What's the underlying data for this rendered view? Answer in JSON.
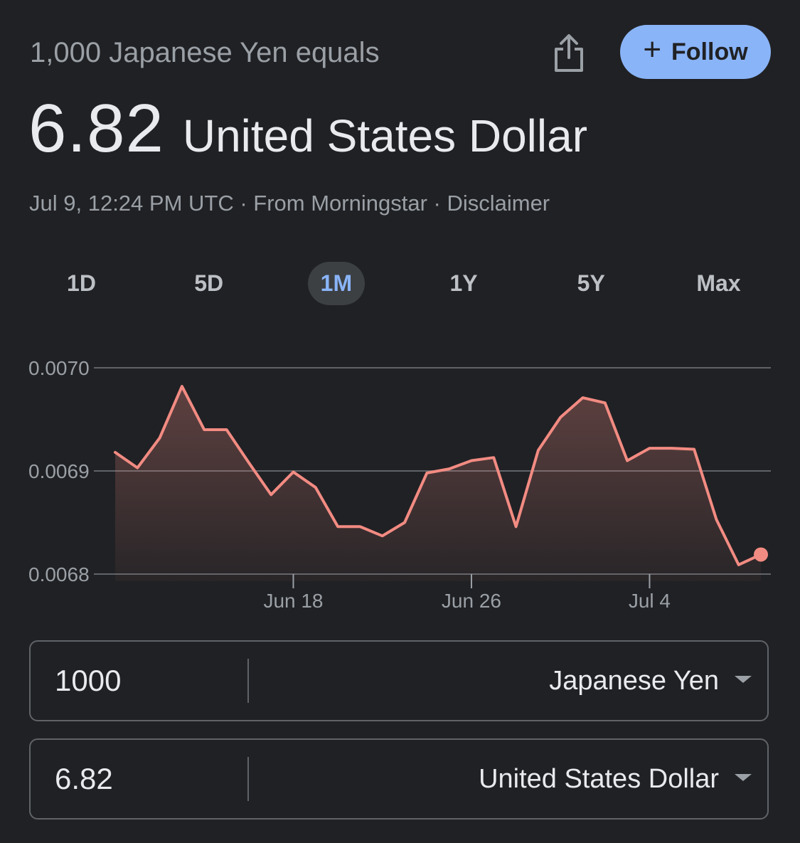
{
  "header": {
    "subtitle": "1,000 Japanese Yen equals",
    "value": "6.82",
    "currency": "United States Dollar",
    "timestamp": "Jul 9, 12:24 PM UTC",
    "separator": " · ",
    "source": "From Morningstar",
    "disclaimer": "Disclaimer",
    "share_icon": "share-icon",
    "follow_label": "Follow",
    "follow_icon": "plus-icon",
    "accent_color": "#8ab4f8"
  },
  "ranges": [
    {
      "label": "1D",
      "active": false
    },
    {
      "label": "5D",
      "active": false
    },
    {
      "label": "1M",
      "active": true
    },
    {
      "label": "1Y",
      "active": false
    },
    {
      "label": "5Y",
      "active": false
    },
    {
      "label": "Max",
      "active": false
    }
  ],
  "chart_data": {
    "type": "area",
    "title": "",
    "xlabel": "",
    "ylabel": "",
    "line_color": "#f28b82",
    "grid": true,
    "ylim": [
      0.0068,
      0.007
    ],
    "yticks": [
      {
        "value": 0.007,
        "label": "0.0070"
      },
      {
        "value": 0.0069,
        "label": "0.0069"
      },
      {
        "value": 0.0068,
        "label": "0.0068"
      }
    ],
    "xticks": [
      {
        "date": "Jun 18",
        "label": "Jun 18"
      },
      {
        "date": "Jun 26",
        "label": "Jun 26"
      },
      {
        "date": "Jul 4",
        "label": "Jul 4"
      }
    ],
    "series": [
      {
        "x": [
          "Jun 10",
          "Jun 11",
          "Jun 12",
          "Jun 13",
          "Jun 14",
          "Jun 15",
          "Jun 16",
          "Jun 17",
          "Jun 18",
          "Jun 19",
          "Jun 20",
          "Jun 21",
          "Jun 22",
          "Jun 23",
          "Jun 24",
          "Jun 25",
          "Jun 26",
          "Jun 27",
          "Jun 28",
          "Jun 29",
          "Jun 30",
          "Jul 1",
          "Jul 2",
          "Jul 3",
          "Jul 4",
          "Jul 5",
          "Jul 6",
          "Jul 7",
          "Jul 8",
          "Jul 9"
        ],
        "values": [
          0.006918,
          0.006903,
          0.006932,
          0.006982,
          0.00694,
          0.00694,
          0.006908,
          0.006877,
          0.006899,
          0.006884,
          0.006846,
          0.006846,
          0.006837,
          0.00685,
          0.006898,
          0.006902,
          0.00691,
          0.006913,
          0.006846,
          0.00692,
          0.006952,
          0.006971,
          0.006966,
          0.00691,
          0.006922,
          0.006922,
          0.006921,
          0.006853,
          0.006809,
          0.006819
        ]
      }
    ]
  },
  "converter": {
    "from": {
      "amount": "1000",
      "currency": "Japanese Yen"
    },
    "to": {
      "amount": "6.82",
      "currency": "United States Dollar"
    }
  }
}
